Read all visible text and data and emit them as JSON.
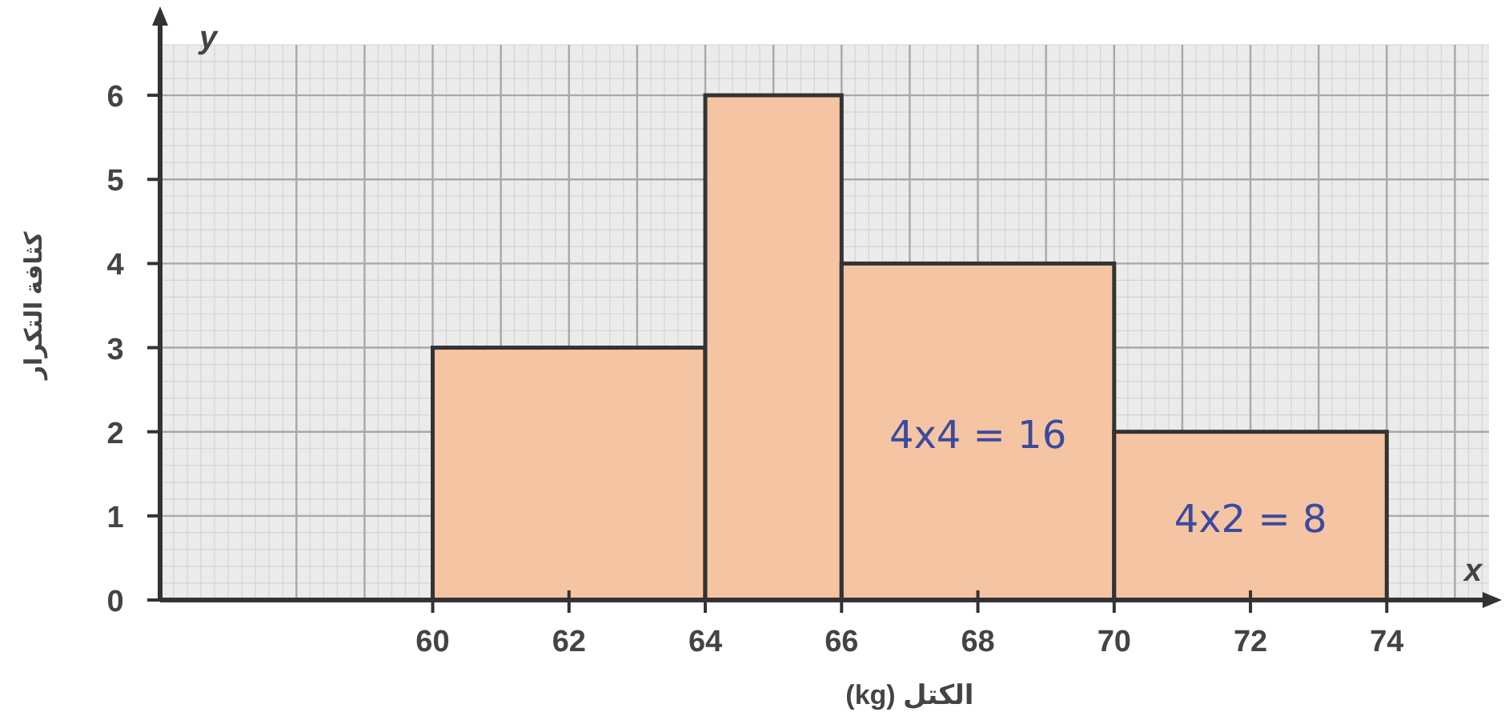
{
  "chart_data": {
    "type": "histogram",
    "xlabel": "الكتل (kg)",
    "ylabel": "كثافة التكرار",
    "bins": [
      60,
      64,
      66,
      70,
      74
    ],
    "values": [
      3,
      6,
      4,
      2
    ],
    "color": "#f5c4a2",
    "xlim": [
      56,
      75.5
    ],
    "ylim": [
      0,
      6.6
    ],
    "xticks": [
      60,
      62,
      64,
      66,
      68,
      70,
      72,
      74
    ],
    "yticks": [
      0,
      1,
      2,
      3,
      4,
      5,
      6
    ],
    "grid": true,
    "annotations": [
      "y",
      "x",
      "4x4 = 16",
      "4x2 = 8"
    ]
  }
}
